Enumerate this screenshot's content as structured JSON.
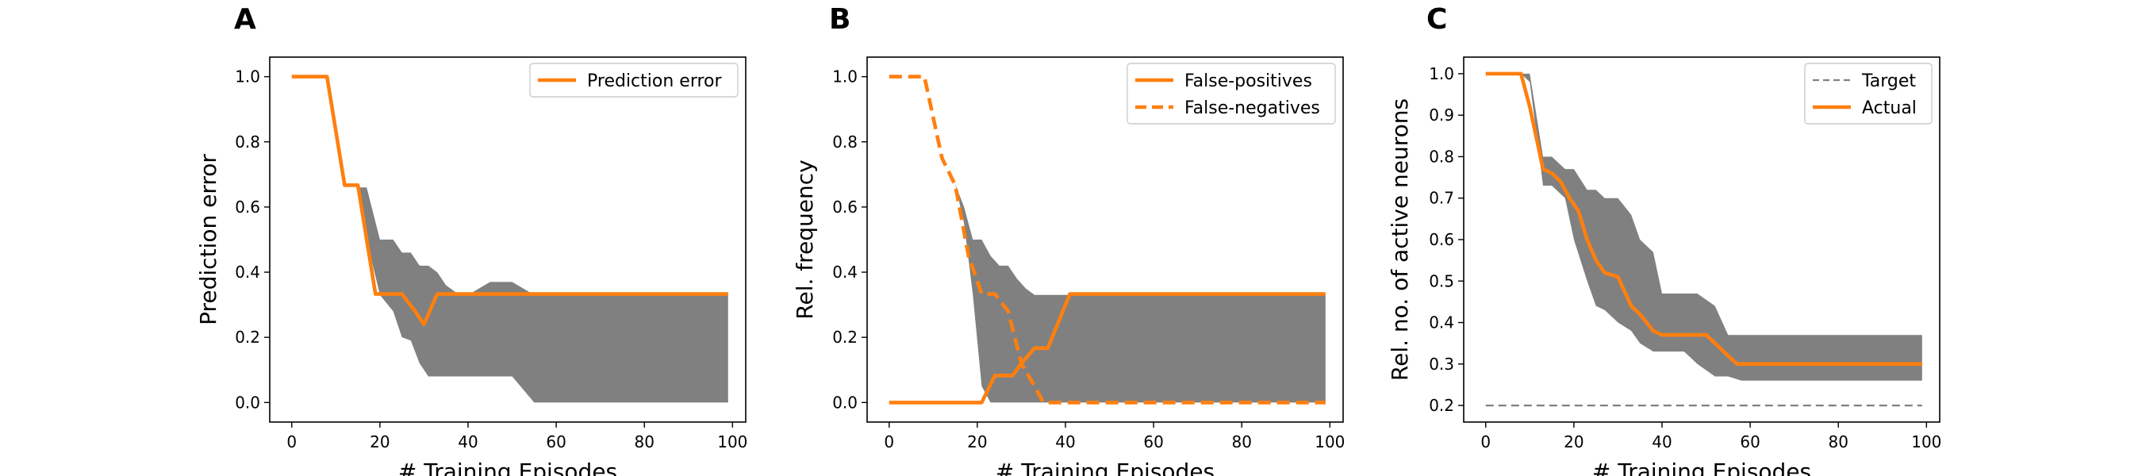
{
  "chart_data": [
    {
      "panel_label": "A",
      "type": "line",
      "xlabel": "# Training Episodes",
      "ylabel": "Prediction error",
      "xlim": [
        -5,
        103
      ],
      "ylim": [
        -0.06,
        1.06
      ],
      "xticks": [
        0,
        20,
        40,
        60,
        80,
        100
      ],
      "xtick_labels": [
        "0",
        "20",
        "40",
        "60",
        "80",
        "100"
      ],
      "yticks": [
        0.0,
        0.2,
        0.4,
        0.6,
        0.8,
        1.0
      ],
      "ytick_labels": [
        "0.0",
        "0.2",
        "0.4",
        "0.6",
        "0.8",
        "1.0"
      ],
      "grid": false,
      "legend_position": "top-right",
      "band": {
        "color": "#808080",
        "x": [
          0,
          8,
          12,
          15,
          17,
          20,
          23,
          25,
          27,
          29,
          31,
          33,
          35,
          38,
          40,
          45,
          50,
          55,
          56,
          99
        ],
        "upper": [
          1.0,
          1.0,
          0.66,
          0.66,
          0.66,
          0.5,
          0.5,
          0.46,
          0.46,
          0.42,
          0.42,
          0.4,
          0.36,
          0.33,
          0.33,
          0.37,
          0.37,
          0.33,
          0.33,
          0.33
        ],
        "lower": [
          1.0,
          1.0,
          0.66,
          0.66,
          0.5,
          0.33,
          0.28,
          0.2,
          0.19,
          0.12,
          0.08,
          0.08,
          0.08,
          0.08,
          0.08,
          0.08,
          0.08,
          0.0,
          0.0,
          0.0
        ]
      },
      "series": [
        {
          "name": "Prediction error",
          "color": "#ff7f0e",
          "dash": "solid",
          "x": [
            0,
            8,
            12,
            15,
            19,
            25,
            28,
            30,
            33,
            99
          ],
          "y": [
            1.0,
            1.0,
            0.667,
            0.667,
            0.333,
            0.333,
            0.28,
            0.24,
            0.333,
            0.333
          ]
        }
      ]
    },
    {
      "panel_label": "B",
      "type": "line",
      "xlabel": "# Training Episodes",
      "ylabel": "Rel. frequency",
      "xlim": [
        -5,
        103
      ],
      "ylim": [
        -0.06,
        1.06
      ],
      "xticks": [
        0,
        20,
        40,
        60,
        80,
        100
      ],
      "xtick_labels": [
        "0",
        "20",
        "40",
        "60",
        "80",
        "100"
      ],
      "yticks": [
        0.0,
        0.2,
        0.4,
        0.6,
        0.8,
        1.0
      ],
      "ytick_labels": [
        "0.0",
        "0.2",
        "0.4",
        "0.6",
        "0.8",
        "1.0"
      ],
      "grid": false,
      "legend_position": "top-right",
      "band": {
        "color": "#808080",
        "x": [
          15,
          17,
          19,
          21,
          23,
          25,
          27,
          29,
          31,
          33,
          35,
          37,
          99
        ],
        "upper": [
          0.67,
          0.6,
          0.5,
          0.5,
          0.45,
          0.42,
          0.42,
          0.38,
          0.35,
          0.33,
          0.33,
          0.33,
          0.33
        ],
        "lower": [
          0.67,
          0.55,
          0.33,
          0.05,
          0.0,
          0.0,
          0.0,
          0.0,
          0.0,
          0.0,
          0.0,
          0.0,
          0.0
        ]
      },
      "series": [
        {
          "name": "False-positives",
          "color": "#ff7f0e",
          "dash": "solid",
          "x": [
            0,
            21,
            24,
            28,
            30,
            33,
            36,
            41,
            99
          ],
          "y": [
            0.0,
            0.0,
            0.083,
            0.083,
            0.12,
            0.167,
            0.167,
            0.333,
            0.333
          ]
        },
        {
          "name": "False-negatives",
          "color": "#ff7f0e",
          "dash": "dashed",
          "x": [
            0,
            8,
            12,
            15,
            18,
            21,
            24,
            27,
            30,
            33,
            35,
            99
          ],
          "y": [
            1.0,
            1.0,
            0.75,
            0.667,
            0.45,
            0.333,
            0.333,
            0.28,
            0.12,
            0.05,
            0.0,
            0.0
          ]
        }
      ]
    },
    {
      "panel_label": "C",
      "type": "line",
      "xlabel": "# Training Episodes",
      "ylabel": "Rel. no. of active neurons",
      "xlim": [
        -5,
        103
      ],
      "ylim": [
        0.16,
        1.04
      ],
      "xticks": [
        0,
        20,
        40,
        60,
        80,
        100
      ],
      "xtick_labels": [
        "0",
        "20",
        "40",
        "60",
        "80",
        "100"
      ],
      "yticks": [
        0.2,
        0.3,
        0.4,
        0.5,
        0.6,
        0.7,
        0.8,
        0.9,
        1.0
      ],
      "ytick_labels": [
        "0.2",
        "0.3",
        "0.4",
        "0.5",
        "0.6",
        "0.7",
        "0.8",
        "0.9",
        "1.0"
      ],
      "grid": false,
      "legend_position": "top-right",
      "band": {
        "color": "#808080",
        "x": [
          0,
          8,
          10,
          13,
          15,
          18,
          20,
          23,
          25,
          27,
          30,
          33,
          35,
          38,
          40,
          45,
          48,
          52,
          55,
          58,
          62,
          70,
          99
        ],
        "upper": [
          1.0,
          1.0,
          1.0,
          0.8,
          0.8,
          0.77,
          0.77,
          0.72,
          0.72,
          0.7,
          0.7,
          0.66,
          0.6,
          0.57,
          0.47,
          0.47,
          0.47,
          0.44,
          0.37,
          0.37,
          0.37,
          0.37,
          0.37
        ],
        "lower": [
          1.0,
          1.0,
          0.98,
          0.73,
          0.73,
          0.7,
          0.6,
          0.5,
          0.44,
          0.43,
          0.4,
          0.38,
          0.35,
          0.33,
          0.33,
          0.33,
          0.3,
          0.27,
          0.27,
          0.26,
          0.26,
          0.26,
          0.26
        ]
      },
      "series": [
        {
          "name": "Target",
          "color": "#808080",
          "dash": "dashed",
          "x": [
            0,
            99
          ],
          "y": [
            0.2,
            0.2
          ]
        },
        {
          "name": "Actual",
          "color": "#ff7f0e",
          "dash": "solid",
          "x": [
            0,
            8,
            10,
            13,
            15,
            17,
            19,
            21,
            23,
            25,
            27,
            30,
            33,
            35,
            38,
            40,
            45,
            50,
            52,
            55,
            57,
            99
          ],
          "y": [
            1.0,
            1.0,
            0.92,
            0.77,
            0.76,
            0.74,
            0.7,
            0.67,
            0.6,
            0.55,
            0.52,
            0.51,
            0.44,
            0.42,
            0.38,
            0.37,
            0.37,
            0.37,
            0.35,
            0.32,
            0.3,
            0.3
          ]
        }
      ]
    }
  ]
}
